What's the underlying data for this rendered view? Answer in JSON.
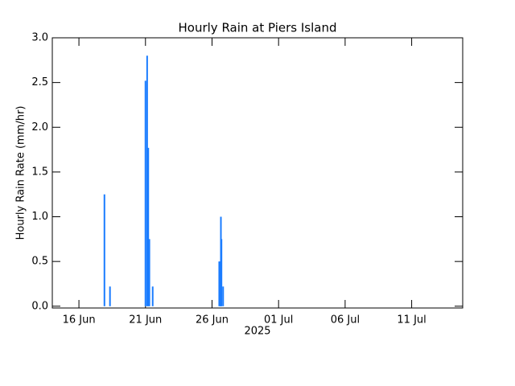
{
  "chart_data": {
    "type": "bar",
    "title": "Hourly Rain at Piers Island",
    "y_label": "Hourly Rain Rate (mm/hr)",
    "x_label": "2025",
    "color": "#1a7cff",
    "x": [
      "2025-06-17T22:00",
      "2025-06-18T08:00",
      "2025-06-21T00:00",
      "2025-06-21T03:00",
      "2025-06-21T05:00",
      "2025-06-21T07:00",
      "2025-06-21T13:00",
      "2025-06-26T13:00",
      "2025-06-26T15:00",
      "2025-06-26T16:00",
      "2025-06-26T17:00",
      "2025-06-26T20:00"
    ],
    "values": [
      1.25,
      0.22,
      2.52,
      2.8,
      1.77,
      0.75,
      0.22,
      0.5,
      0.5,
      1.0,
      0.75,
      0.22
    ],
    "xlim": [
      "2025-06-14T00:00",
      "2025-07-14T20:00"
    ],
    "xticks": [
      {
        "value": "2025-06-16T00:00",
        "label": "16 Jun"
      },
      {
        "value": "2025-06-21T00:00",
        "label": "21 Jun"
      },
      {
        "value": "2025-06-26T00:00",
        "label": "26 Jun"
      },
      {
        "value": "2025-07-01T00:00",
        "label": "01 Jul"
      },
      {
        "value": "2025-07-06T00:00",
        "label": "06 Jul"
      },
      {
        "value": "2025-07-11T00:00",
        "label": "11 Jul"
      }
    ],
    "ylim": [
      -0.02,
      3.0
    ],
    "yticks": [
      {
        "value": 0,
        "label": "0.0"
      },
      0.5,
      {
        "value": 1,
        "label": "1.0"
      },
      1.5,
      {
        "value": 2,
        "label": "2.0"
      },
      2.5,
      {
        "value": 3,
        "label": "3.0"
      }
    ],
    "grid": false
  }
}
